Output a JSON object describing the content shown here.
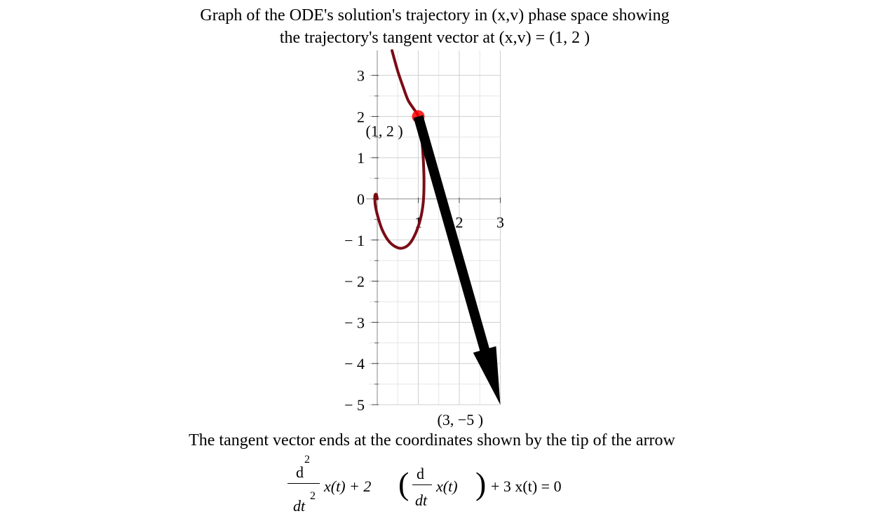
{
  "chart_data": {
    "type": "line",
    "title_line1": "Graph of the ODE's solution's trajectory in (x,v) phase space showing",
    "title_line2": "the trajectory's tangent vector at (x,v) = (1, 2 )",
    "xlim": [
      -0.1,
      3
    ],
    "ylim": [
      -5,
      3.3
    ],
    "x_ticks": [
      "1",
      "2",
      "3"
    ],
    "y_ticks": [
      "3",
      "2",
      "1",
      "0",
      "-1",
      "-2",
      "-3",
      "-4",
      "-5"
    ],
    "grid": true,
    "series": [
      {
        "kind": "trajectory",
        "color": "#7a0c16",
        "x": [
          0.36,
          0.5,
          0.62,
          0.75,
          0.88,
          1.0,
          1.07,
          1.12,
          1.14,
          1.12,
          1.05,
          0.93,
          0.78,
          0.6,
          0.42,
          0.26,
          0.12,
          0.02,
          -0.04,
          -0.06,
          -0.05,
          -0.02,
          0.0
        ],
        "y": [
          3.6,
          3.1,
          2.75,
          2.4,
          2.2,
          2.0,
          1.6,
          1.0,
          0.4,
          -0.1,
          -0.5,
          -0.85,
          -1.1,
          -1.2,
          -1.15,
          -1.0,
          -0.75,
          -0.45,
          -0.2,
          0.0,
          0.1,
          0.1,
          0.0
        ]
      }
    ],
    "point": {
      "x": 1,
      "y": 2,
      "label": "(1, 2 )",
      "color": "#ff0000"
    },
    "tangent_vector": {
      "from": [
        1,
        2
      ],
      "to": [
        3,
        -5
      ],
      "label": "(3, -5 )",
      "color": "#000000"
    }
  },
  "caption": "The tangent vector ends at the coordinates shown by the tip of the arrow",
  "equation": {
    "d1": "d",
    "sup2": "2",
    "dt1": "dt",
    "term1": "x(t) + 2",
    "d2": "d",
    "dt2": "dt",
    "term2": "x(t)",
    "term3": "+ 3 x(t) = 0"
  }
}
